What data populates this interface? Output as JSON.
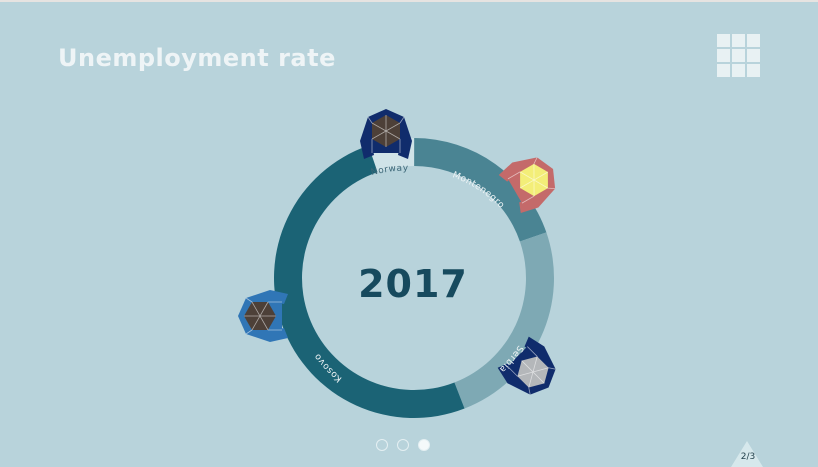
{
  "title": "Unemployment rate",
  "year": "2017",
  "pager": "2/3",
  "slides": [
    {
      "active": false
    },
    {
      "active": false
    },
    {
      "active": true
    }
  ],
  "colors": {
    "background": "#b8d3db",
    "norway_arc": "#d0e3e8",
    "montenegro_arc": "#4a8493",
    "serbia_arc": "#7ea9b4",
    "kosovo_arc": "#1b6375",
    "year_text": "#174a5e"
  },
  "chart_data": {
    "type": "donut",
    "center_label": "2017",
    "segments": [
      {
        "label": "Norway",
        "share": 0.053
      },
      {
        "label": "Montenegro",
        "share": 0.197
      },
      {
        "label": "Serbia",
        "share": 0.244
      },
      {
        "label": "Kosovo",
        "share": 0.506
      }
    ]
  },
  "figures": [
    {
      "country": "Norway",
      "icon": "person-topdown-icon",
      "hair": "#4d4038",
      "clothing": "#102c6c"
    },
    {
      "country": "Montenegro",
      "icon": "person-topdown-icon",
      "hair": "#f3ee78",
      "clothing": "#c46a6a"
    },
    {
      "country": "Serbia",
      "icon": "person-topdown-icon",
      "hair": "#b4b7ba",
      "clothing": "#102c6c"
    },
    {
      "country": "Kosovo",
      "icon": "person-topdown-icon",
      "hair": "#4d4038",
      "clothing": "#3076b6"
    }
  ]
}
